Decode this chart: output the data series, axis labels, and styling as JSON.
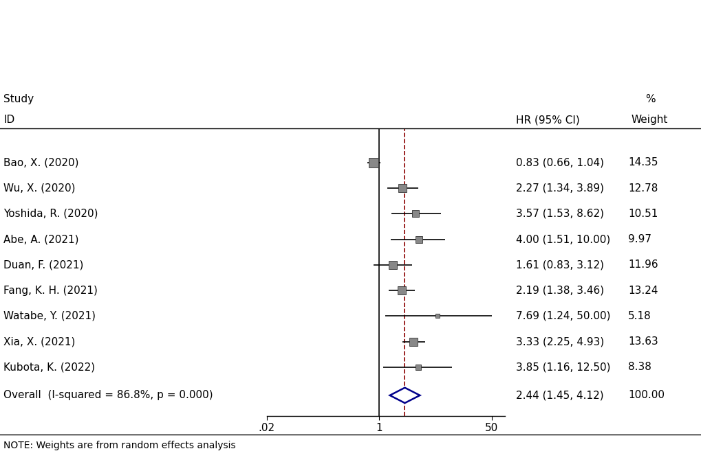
{
  "studies": [
    {
      "label": "Bao, X. (2020)",
      "hr": 0.83,
      "lower": 0.66,
      "upper": 1.04,
      "weight": 14.35,
      "ci_text": "0.83 (0.66, 1.04)",
      "w_text": "14.35"
    },
    {
      "label": "Wu, X. (2020)",
      "hr": 2.27,
      "lower": 1.34,
      "upper": 3.89,
      "weight": 12.78,
      "ci_text": "2.27 (1.34, 3.89)",
      "w_text": "12.78"
    },
    {
      "label": "Yoshida, R. (2020)",
      "hr": 3.57,
      "lower": 1.53,
      "upper": 8.62,
      "weight": 10.51,
      "ci_text": "3.57 (1.53, 8.62)",
      "w_text": "10.51"
    },
    {
      "label": "Abe, A. (2021)",
      "hr": 4.0,
      "lower": 1.51,
      "upper": 10.0,
      "weight": 9.97,
      "ci_text": "4.00 (1.51, 10.00)",
      "w_text": "9.97"
    },
    {
      "label": "Duan, F. (2021)",
      "hr": 1.61,
      "lower": 0.83,
      "upper": 3.12,
      "weight": 11.96,
      "ci_text": "1.61 (0.83, 3.12)",
      "w_text": "11.96"
    },
    {
      "label": "Fang, K. H. (2021)",
      "hr": 2.19,
      "lower": 1.38,
      "upper": 3.46,
      "weight": 13.24,
      "ci_text": "2.19 (1.38, 3.46)",
      "w_text": "13.24"
    },
    {
      "label": "Watabe, Y. (2021)",
      "hr": 7.69,
      "lower": 1.24,
      "upper": 50.0,
      "weight": 5.18,
      "ci_text": "7.69 (1.24, 50.00)",
      "w_text": "5.18"
    },
    {
      "label": "Xia, X. (2021)",
      "hr": 3.33,
      "lower": 2.25,
      "upper": 4.93,
      "weight": 13.63,
      "ci_text": "3.33 (2.25, 4.93)",
      "w_text": "13.63"
    },
    {
      "label": "Kubota, K. (2022)",
      "hr": 3.85,
      "lower": 1.16,
      "upper": 12.5,
      "weight": 8.38,
      "ci_text": "3.85 (1.16, 12.50)",
      "w_text": "8.38"
    },
    {
      "label": "Overall  (I-squared = 86.8%, p = 0.000)",
      "hr": 2.44,
      "lower": 1.45,
      "upper": 4.12,
      "weight": 100.0,
      "ci_text": "2.44 (1.45, 4.12)",
      "w_text": "100.00",
      "is_overall": true
    }
  ],
  "xmin": 0.02,
  "xmax": 80,
  "xticks": [
    0.02,
    1,
    50
  ],
  "xticklabels": [
    ".02",
    "1",
    "50"
  ],
  "null_line": 1.0,
  "dashed_line": 2.44,
  "bg_color": "#ffffff",
  "box_color": "#888888",
  "diamond_facecolor": "#ffffff",
  "diamond_edgecolor": "#00008B",
  "line_color": "#000000",
  "dashed_color": "#8B0000",
  "text_color": "#000000",
  "fontsize": 11,
  "note_fontsize": 10
}
